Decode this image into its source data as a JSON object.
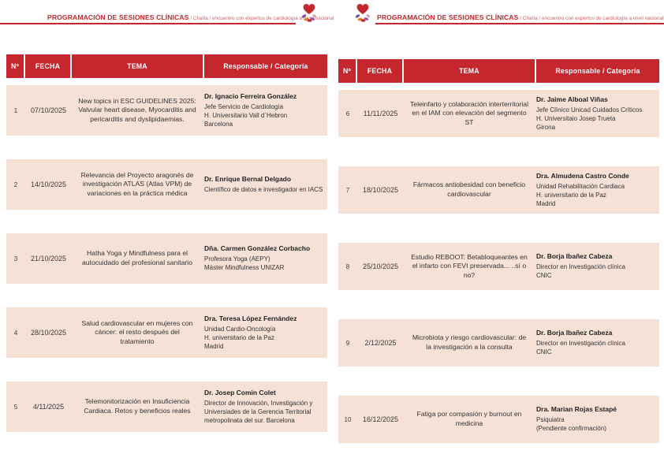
{
  "header": {
    "title": "PROGRAMACIÓN DE SESIONES CLÍNICAS",
    "subtitle": " / Charla / encuentro con expertos de cardiología a nivel nacional",
    "logo": "heart-hands-logo"
  },
  "colors": {
    "primary_red": "#C4272E",
    "subtitle_red": "#CC6168",
    "row_background": "#F6E1D7",
    "header_text": "#FFFFFF"
  },
  "table_headers": {
    "num": "Nº",
    "fecha": "FECHA",
    "tema": "TEMA",
    "responsable": "Responsable / Categoría"
  },
  "left_table": {
    "rows": [
      {
        "num": "1",
        "fecha": "07/10/2025",
        "tema": "New topics in ESC GUIDELINES 2025: Valvular heart disease, Myocarditis and pericarditis and dyslipidaemias.",
        "responsable_name": "Dr. Ignacio Ferreira González",
        "responsable_lines": [
          "Jefe Servicio de Cardiología",
          "H. Universitario Vall d´Hebron",
          "Barcelona"
        ]
      },
      {
        "num": "2",
        "fecha": "14/10/2025",
        "tema": "Relevancia del Proyecto aragonés de investigación ATLAS (Atlas VPM) de variaciones en la práctica médica",
        "responsable_name": "Dr. Enrique Bernal Delgado",
        "responsable_lines": [
          "Científico de datos e investigador en IACS"
        ]
      },
      {
        "num": "3",
        "fecha": "21/10/2025",
        "tema": "Hatha Yoga y Mindfulness para el autocuidado del profesional sanitario",
        "responsable_name": "Dña. Carmen  González Corbacho",
        "responsable_lines": [
          "Profesora Yoga (AEPY)",
          "Máster Mindfulness UNIZAR"
        ]
      },
      {
        "num": "4",
        "fecha": "28/10/2025",
        "tema": "Salud cardiovascular en mujeres con cáncer: el resto después del tratamiento",
        "responsable_name": "Dra. Teresa López Fernández",
        "responsable_lines": [
          "Unidad Cardio-Oncología",
          "H. universitario de la Paz",
          "Madrid"
        ]
      },
      {
        "num": "5",
        "fecha": "4/11/2025",
        "tema": "Telemonitorización en Insuficiencia Cardiaca. Retos y beneficios reales",
        "responsable_name": "Dr. Josep Comin Colet",
        "responsable_lines": [
          "Director de Innovación, Investigación y",
          "Universiades de la Gerencia Territorial",
          "metropolinata del sur. Barcelona"
        ]
      }
    ]
  },
  "right_table": {
    "rows": [
      {
        "num": "6",
        "fecha": "11/11/2025",
        "tema": "Teleinfarto y colaboración interterritorial en el IAM con elevación del segmento ST",
        "responsable_name": "Dr. Jaime Alboal Viñas",
        "responsable_lines": [
          "Jefe Clínico Unicad Cuidados Críticos",
          "H. Universitaio Josep Trueta",
          "Girona"
        ]
      },
      {
        "num": "7",
        "fecha": "18/10/2025",
        "tema": "Fármacos antiobesidad con beneficio cardiovascular",
        "responsable_name": "Dra. Almudena Castro  Conde",
        "responsable_lines": [
          "Unidad Rehabilitación Cardiaca",
          "H. universitario de la Paz",
          "Madrid"
        ]
      },
      {
        "num": "8",
        "fecha": "25/10/2025",
        "tema": "Estudio REBOOT: Betabloqueantes en el infarto con FEVI preservada... ..sí o no?",
        "responsable_name": "Dr. Borja Ibañez Cabeza",
        "responsable_lines": [
          "Director en Investigación clínica",
          "CNIC"
        ]
      },
      {
        "num": "9",
        "fecha": "2/12/2025",
        "tema": "Microbiota y riesgo cardiovascular: de la investigación a la consulta",
        "responsable_name": "Dr. Borja Ibañez Cabeza",
        "responsable_lines": [
          "Director en Investigación clínica",
          "CNIC"
        ]
      },
      {
        "num": "10",
        "fecha": "16/12/2025",
        "tema": "Fatiga por compasión y burnout en medicina",
        "responsable_name": "Dra. Marian Rojas Estapé",
        "responsable_lines": [
          "Psiquiatra",
          "(Pendiente confirmación)"
        ]
      }
    ]
  }
}
